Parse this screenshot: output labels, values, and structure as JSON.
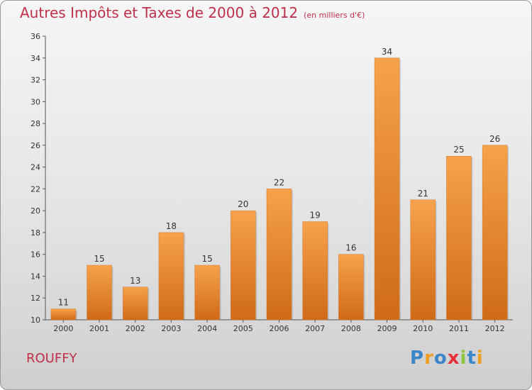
{
  "chart_data": {
    "type": "bar",
    "title": "Autres Impôts et Taxes de 2000 à 2012",
    "subtitle": "(en milliers d'€)",
    "categories": [
      "2000",
      "2001",
      "2002",
      "2003",
      "2004",
      "2005",
      "2006",
      "2007",
      "2008",
      "2009",
      "2010",
      "2011",
      "2012"
    ],
    "values": [
      11,
      15,
      13,
      18,
      15,
      20,
      22,
      19,
      16,
      34,
      21,
      25,
      26
    ],
    "ylim": [
      10,
      36
    ],
    "yticks": [
      10,
      12,
      14,
      16,
      18,
      20,
      22,
      24,
      26,
      28,
      30,
      32,
      34,
      36
    ],
    "grid": false,
    "bar_color": "#f0963c"
  },
  "commune": "ROUFFY",
  "logo": {
    "letters": [
      "P",
      "r",
      "o",
      "x",
      "i",
      "t",
      "i"
    ],
    "colors": [
      "#3a86c8",
      "#f0a020",
      "#3a86c8",
      "#e8303a",
      "#8cc63f",
      "#3a86c8",
      "#f0a020"
    ]
  }
}
